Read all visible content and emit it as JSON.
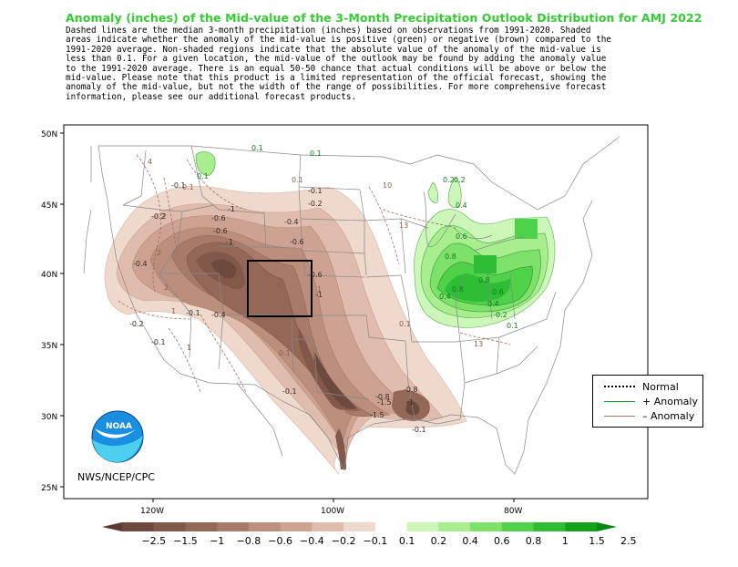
{
  "title": "Anomaly (inches) of the Mid-value of the 3-Month Precipitation Outlook Distribution for AMJ 2022",
  "description_lines": [
    "Dashed lines are the median 3-month precipitation (inches) based on observations from 1991-2020.  Shaded",
    "areas indicate whether the anomaly of the mid-value is positive (green) or negative (brown) compared to the",
    "1991-2020 average.   Non-shaded regions indicate that the absolute value of the anomaly of the mid-value is",
    "less than 0.1.    For a given location, the mid-value of the outlook may be found by adding the anomaly value",
    "to the 1991-2020 average. There is an equal 50-50 chance that actual conditions will be above or below the",
    "mid-value. Please note that this product is a limited representation of the official forecast, showing the",
    "anomaly of the mid-value, but not the width of the range of possibilities. For more comprehensive forecast",
    "information, please see our additional forecast products."
  ],
  "lat_labels": [
    "50N",
    "45N",
    "40N",
    "35N",
    "30N",
    "25N"
  ],
  "lon_labels": [
    "120W",
    "100W",
    "80W"
  ],
  "legend": {
    "normal": "Normal",
    "plus": "+ Anomaly",
    "minus": "– Anomaly"
  },
  "agency": "NWS/NCEP/CPC",
  "logo_text": "NOAA",
  "colorbar": {
    "labels": [
      "−2.5",
      "−1.5",
      "−1",
      "−0.8",
      "−0.6",
      "−0.4",
      "−0.2",
      "−0.1",
      "0.1",
      "0.2",
      "0.4",
      "0.6",
      "0.8",
      "1",
      "1.5",
      "2.5"
    ],
    "colors": [
      "#5a3a30",
      "#6e4a3e",
      "#82584b",
      "#946858",
      "#a87a69",
      "#bb8e7d",
      "#cda292",
      "#dfbcad",
      "#efd8cc",
      "#ffffff",
      "#ccf7b8",
      "#a8ee8e",
      "#7ee26a",
      "#4fd24a",
      "#2ebd35",
      "#14a21c",
      "#088a12"
    ]
  },
  "contour_labels": {
    "dashed": [
      "4",
      "2",
      "2",
      "1",
      "2",
      "4",
      "0.1",
      "0.1",
      "1",
      "4",
      "13",
      "13",
      "1",
      "0.1",
      "0.1",
      "10"
    ],
    "brown": [
      "-0.1",
      "-0.2",
      "-0.2",
      "-0.4",
      "-0.4",
      "-0.6",
      "-0.6",
      "-0.6",
      "-1",
      "-1",
      "-0.4",
      "-0.6",
      "-0.8",
      "-1",
      "-0.1",
      "-0.2",
      "-0.1",
      "-0.1",
      "-0.8",
      "-1.5",
      "-1.5",
      "-0.1",
      "-0.1",
      "-1"
    ],
    "green": [
      "0.1",
      "0.1",
      "0.1",
      "0.2",
      "0.2",
      "0.4",
      "0.6",
      "0.8",
      "0.8",
      "0.6",
      "0.4",
      "0.2",
      "0.1",
      "0.8",
      "0.4"
    ]
  }
}
